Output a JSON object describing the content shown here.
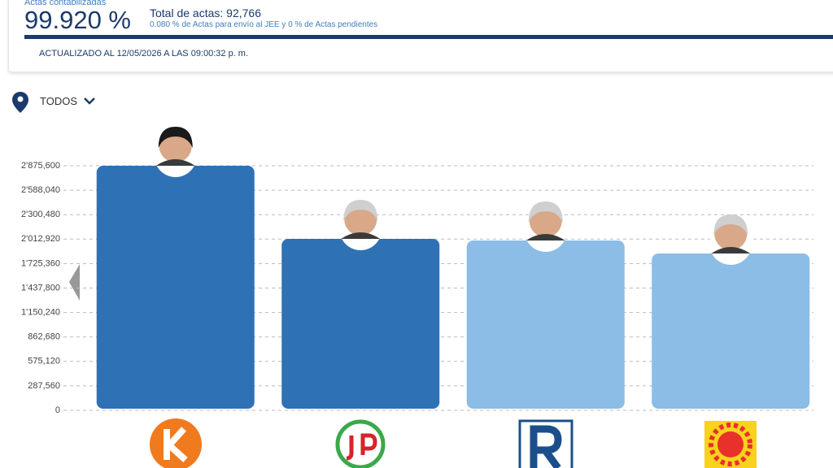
{
  "header": {
    "counted_label": "Actas contabilizadas",
    "counted_percent": "99.920 %",
    "total": "Total de actas: 92,766",
    "pending": "0.080 % de Actas para envío al JEE y 0 % de Actas pendientes",
    "updated": "ACTUALIZADO AL 12/05/2026 A LAS 09:00:32 p. m.",
    "filter": "TODOS"
  },
  "chart_data": {
    "type": "bar",
    "categories": [
      null,
      null,
      null,
      null
    ],
    "values": [
      2875600,
      2016000,
      1996700,
      1843800
    ],
    "colors": [
      "#2f71b5",
      "#2f71b5",
      "#8bbde6",
      "#8bbde6"
    ],
    "ylim": [
      0,
      2875600
    ],
    "yticks": [
      0,
      {
        "value": 287560,
        "label": "287,560"
      },
      {
        "value": 575120,
        "label": "575,120"
      },
      {
        "value": 862680,
        "label": "862,680"
      },
      {
        "value": 1150240,
        "label": "1'150,240"
      },
      {
        "value": 1437800,
        "label": "1'437,800"
      },
      {
        "value": 1725360,
        "label": "1'725,360"
      },
      {
        "value": 2012920,
        "label": "2'012,920"
      },
      {
        "value": 2300480,
        "label": "2'300,480"
      },
      {
        "value": 2588040,
        "label": "2'588,040"
      },
      {
        "value": 2875600,
        "label": "2'875,600"
      }
    ],
    "grid": true
  }
}
